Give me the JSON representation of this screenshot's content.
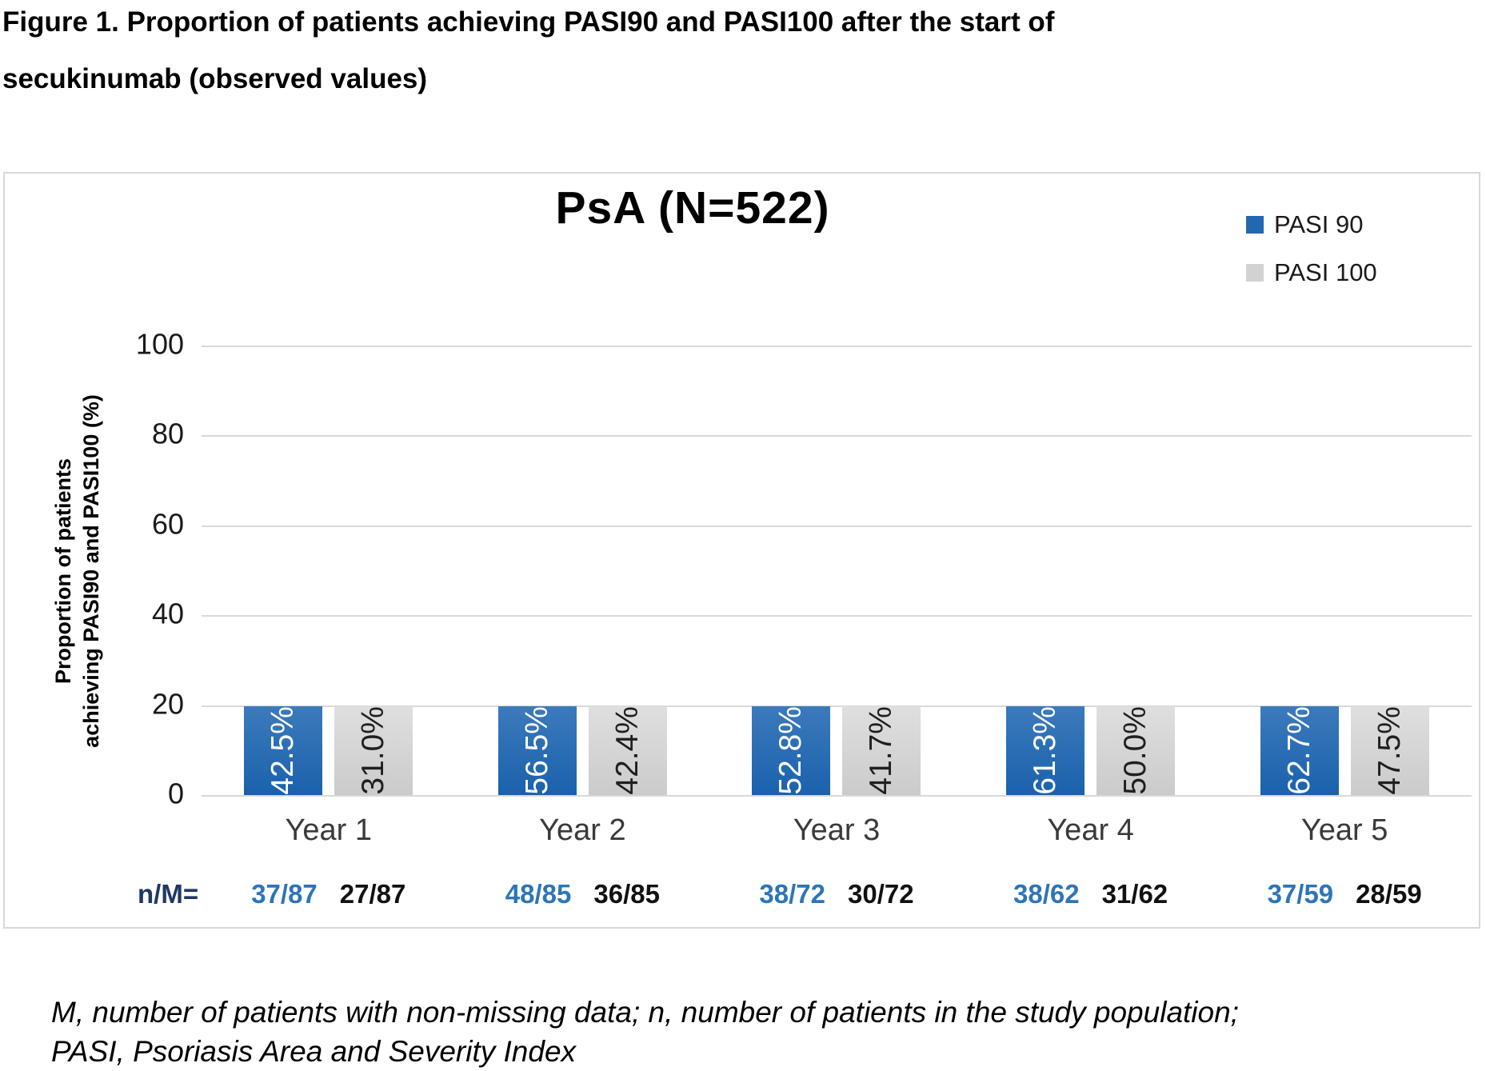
{
  "figure": {
    "title_line1": "Figure 1. Proportion of patients achieving PASI90 and PASI100 after the start of",
    "title_line2": "secukinumab (observed values)"
  },
  "y_axis": {
    "label_line1": "Proportion of patients",
    "label_line2": "achieving PASI90 and PASI100 (%)"
  },
  "nm_row": {
    "prefix": "n/M=",
    "prefix_color": "#1f3864"
  },
  "chart_data": {
    "type": "bar",
    "title": "PsA (N=522)",
    "categories": [
      "Year 1",
      "Year 2",
      "Year 3",
      "Year 4",
      "Year 5"
    ],
    "series": [
      {
        "name": "PASI 90",
        "values": [
          42.5,
          56.5,
          52.8,
          61.3,
          62.7
        ],
        "n_over_M": [
          "37/87",
          "48/85",
          "38/72",
          "38/62",
          "37/59"
        ],
        "color": "#2268b0",
        "gradient": [
          "#3c7abb",
          "#1a61ac"
        ],
        "label_color": "#ffffff",
        "nm_color": "#2e75b6"
      },
      {
        "name": "PASI 100",
        "values": [
          31.0,
          42.4,
          41.7,
          50.0,
          47.5
        ],
        "n_over_M": [
          "27/87",
          "36/85",
          "30/72",
          "31/62",
          "28/59"
        ],
        "color": "#d2d2d2",
        "gradient": [
          "#dfdfdf",
          "#cbcbcb"
        ],
        "label_color": "#1f1f1f",
        "nm_color": "#111111"
      }
    ],
    "ylabel": "Proportion of patients achieving PASI90 and PASI100 (%)",
    "ylim": [
      0,
      100
    ],
    "yticks": [
      0,
      20,
      40,
      60,
      80,
      100
    ],
    "grid": true,
    "gridline_color": "#d9d9d9",
    "legend_position": "top-right"
  },
  "footnote": {
    "line1": "M, number of patients with non-missing data; n, number of patients in the study population;",
    "line2": "PASI, Psoriasis Area and Severity Index"
  }
}
